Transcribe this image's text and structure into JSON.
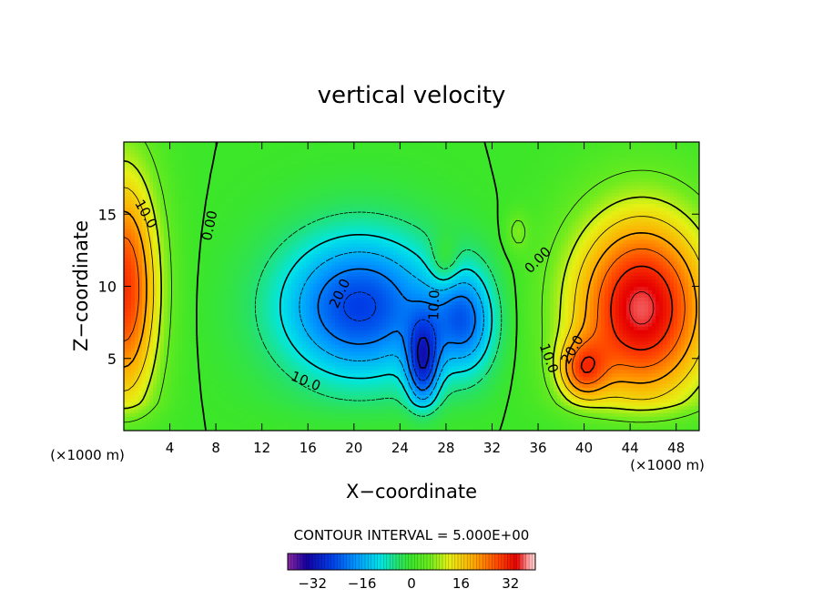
{
  "chart_data": {
    "type": "heatmap",
    "title": "vertical velocity",
    "xlabel": "X−coordinate",
    "ylabel": "Z−coordinate",
    "x_unit": "(×1000 m)",
    "x_unit_right": "(×1000 m)",
    "xlim": [
      0,
      50
    ],
    "ylim": [
      0,
      20
    ],
    "x_ticks": [
      4,
      8,
      12,
      16,
      20,
      24,
      28,
      32,
      36,
      40,
      44,
      48
    ],
    "x_tick_labels": [
      "4",
      "8",
      "12",
      "16",
      "20",
      "24",
      "28",
      "32",
      "36",
      "40",
      "44",
      "48"
    ],
    "y_ticks": [
      5,
      10,
      15
    ],
    "y_tick_labels": [
      "5",
      "10",
      "15"
    ],
    "contour_interval_text": "CONTOUR INTERVAL = 5.000E+00",
    "contour_interval": 5,
    "value_range": [
      -40,
      40
    ],
    "colorbar": {
      "ticks": [
        -32,
        -16,
        0,
        16,
        32
      ],
      "tick_labels": [
        "−32",
        "−16",
        "0",
        "16",
        "32"
      ]
    },
    "contour_labels": [
      {
        "text": "10.0",
        "x": 1.9,
        "z": 15.0,
        "angle": 60
      },
      {
        "text": "0.00",
        "x": 7.5,
        "z": 14.2,
        "angle": -78
      },
      {
        "text": "20.0",
        "x": 18.8,
        "z": 9.5,
        "angle": -65
      },
      {
        "text": "10.0",
        "x": 15.8,
        "z": 3.4,
        "angle": 22
      },
      {
        "text": "10.0",
        "x": 27.0,
        "z": 8.7,
        "angle": -88
      },
      {
        "text": "0.00",
        "x": 36.0,
        "z": 11.8,
        "angle": -45
      },
      {
        "text": "10.0",
        "x": 36.9,
        "z": 5.0,
        "angle": 70
      },
      {
        "text": "20.0",
        "x": 39.0,
        "z": 5.6,
        "angle": -60
      }
    ],
    "field_features": [
      {
        "name": "updraft-left",
        "x": 0.0,
        "z": 9.8,
        "amp": 30,
        "sx": 2.2,
        "sz": 6.0
      },
      {
        "name": "downdraft-main",
        "x": 20.5,
        "z": 8.6,
        "amp": -26,
        "sx": 5.0,
        "sz": 3.6
      },
      {
        "name": "downdraft-core",
        "x": 26.0,
        "z": 4.6,
        "amp": -22,
        "sx": 1.0,
        "sz": 2.2
      },
      {
        "name": "downdraft-east",
        "x": 29.6,
        "z": 7.6,
        "amp": -19,
        "sx": 1.9,
        "sz": 2.6
      },
      {
        "name": "weak-updraft-28",
        "x": 27.9,
        "z": 11.6,
        "amp": 7,
        "sx": 0.9,
        "sz": 1.3
      },
      {
        "name": "weak-updraft-34",
        "x": 34.2,
        "z": 13.8,
        "amp": 6,
        "sx": 0.7,
        "sz": 1.0
      },
      {
        "name": "updraft-right",
        "x": 45.0,
        "z": 8.5,
        "amp": 36,
        "sx": 4.4,
        "sz": 4.8
      },
      {
        "name": "updraft-right-low",
        "x": 39.8,
        "z": 4.2,
        "amp": 18,
        "sx": 1.5,
        "sz": 1.5
      }
    ]
  }
}
